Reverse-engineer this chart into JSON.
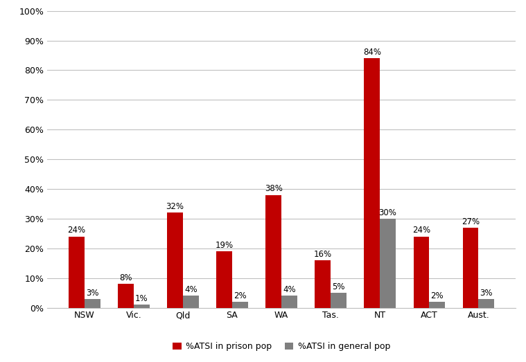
{
  "categories": [
    "NSW",
    "Vic.",
    "Qld",
    "SA",
    "WA",
    "Tas.",
    "NT",
    "ACT",
    "Aust."
  ],
  "prison_pop": [
    24,
    8,
    32,
    19,
    38,
    16,
    84,
    24,
    27
  ],
  "general_pop": [
    3,
    1,
    4,
    2,
    4,
    5,
    30,
    2,
    3
  ],
  "prison_labels": [
    "24%",
    "8%",
    "32%",
    "19%",
    "38%",
    "16%",
    "84%",
    "24%",
    "27%"
  ],
  "general_labels": [
    "3%",
    "1%",
    "4%",
    "2%",
    "4%",
    "5%",
    "30%",
    "2%",
    "3%"
  ],
  "prison_color": "#C00000",
  "general_color": "#7F7F7F",
  "ylim": [
    0,
    100
  ],
  "ytick_labels": [
    "0%",
    "10%",
    "20%",
    "30%",
    "40%",
    "50%",
    "60%",
    "70%",
    "80%",
    "90%",
    "100%"
  ],
  "ytick_values": [
    0,
    10,
    20,
    30,
    40,
    50,
    60,
    70,
    80,
    90,
    100
  ],
  "legend_label_prison": "%ATSI in prison pop",
  "legend_label_general": "%ATSI in general pop",
  "bar_width": 0.32,
  "background_color": "#FFFFFF",
  "grid_color": "#C0C0C0",
  "label_fontsize": 8.5,
  "tick_fontsize": 9,
  "legend_fontsize": 9
}
